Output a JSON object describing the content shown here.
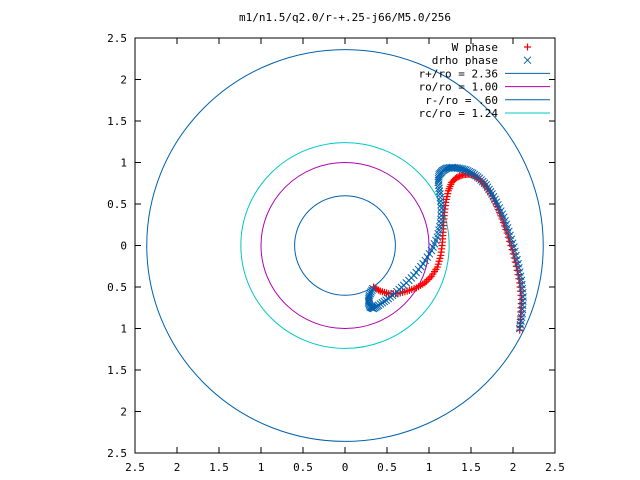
{
  "chart_data": {
    "type": "scatter",
    "title": "m1/n1.5/q2.0/r-+.25-j66/M5.0/256",
    "xlim": [
      -2.5,
      2.5
    ],
    "ylim": [
      -2.5,
      2.5
    ],
    "x_ticks": [
      -2.5,
      -2,
      -1.5,
      -1,
      -0.5,
      0,
      0.5,
      1,
      1.5,
      2,
      2.5
    ],
    "x_tick_labels": [
      "2.5",
      "2",
      "1.5",
      "1",
      "0.5",
      "0",
      "0.5",
      "1",
      "1.5",
      "2",
      "2.5"
    ],
    "y_ticks": [
      2.5,
      2,
      1.5,
      1,
      0.5,
      0,
      -0.5,
      -1,
      -1.5,
      -2,
      -2.5
    ],
    "y_tick_labels": [
      "2.5",
      "2",
      "1.5",
      "1",
      "0.5",
      "0",
      "0.5",
      "1",
      "1.5",
      "2",
      "2.5"
    ],
    "grid": false,
    "legend_position": "top-right",
    "series": [
      {
        "name": "W phase",
        "kind": "points",
        "marker": "plus",
        "color": "#ff0000",
        "x": [
          2.08,
          2.09,
          2.1,
          2.08,
          2.04,
          1.99,
          1.93,
          1.87,
          1.81,
          1.75,
          1.68,
          1.61,
          1.54,
          1.47,
          1.4,
          1.33,
          1.27,
          1.23,
          1.2,
          1.18,
          1.17,
          1.16,
          1.14,
          1.1,
          1.03,
          0.95,
          0.85,
          0.74,
          0.63,
          0.52,
          0.42,
          0.34
        ],
        "y": [
          -1.02,
          -0.85,
          -0.65,
          -0.45,
          -0.25,
          -0.05,
          0.15,
          0.32,
          0.47,
          0.6,
          0.71,
          0.79,
          0.84,
          0.86,
          0.85,
          0.82,
          0.76,
          0.66,
          0.52,
          0.36,
          0.2,
          0.04,
          -0.12,
          -0.26,
          -0.37,
          -0.45,
          -0.51,
          -0.55,
          -0.58,
          -0.58,
          -0.55,
          -0.5
        ]
      },
      {
        "name": "drho phase",
        "kind": "points",
        "marker": "cross",
        "color": "#0060ad",
        "x": [
          2.08,
          2.11,
          2.12,
          2.1,
          2.06,
          2.01,
          1.95,
          1.89,
          1.82,
          1.75,
          1.68,
          1.6,
          1.52,
          1.44,
          1.36,
          1.28,
          1.21,
          1.16,
          1.12,
          1.11,
          1.13,
          1.15,
          1.14,
          1.1,
          1.03,
          0.93,
          0.82,
          0.7,
          0.59,
          0.49,
          0.4,
          0.34,
          0.3,
          0.28,
          0.29,
          0.33
        ],
        "y": [
          -1.0,
          -0.82,
          -0.62,
          -0.42,
          -0.22,
          -0.02,
          0.17,
          0.34,
          0.49,
          0.62,
          0.73,
          0.81,
          0.87,
          0.91,
          0.93,
          0.94,
          0.93,
          0.9,
          0.85,
          0.76,
          0.62,
          0.45,
          0.27,
          0.1,
          -0.06,
          -0.22,
          -0.36,
          -0.48,
          -0.58,
          -0.66,
          -0.72,
          -0.76,
          -0.74,
          -0.68,
          -0.6,
          -0.52
        ]
      },
      {
        "name": "r+/ro = 2.36",
        "kind": "circle",
        "radius": 2.36,
        "color": "#0060ad"
      },
      {
        "name": "ro/ro = 1.00",
        "kind": "circle",
        "radius": 1.0,
        "color": "#b000b0"
      },
      {
        "name": "r-/ro = .60",
        "kind": "circle",
        "radius": 0.6,
        "color": "#0060ad"
      },
      {
        "name": "rc/ro = 1.24",
        "kind": "circle",
        "radius": 1.24,
        "color": "#00c8c8"
      }
    ]
  }
}
